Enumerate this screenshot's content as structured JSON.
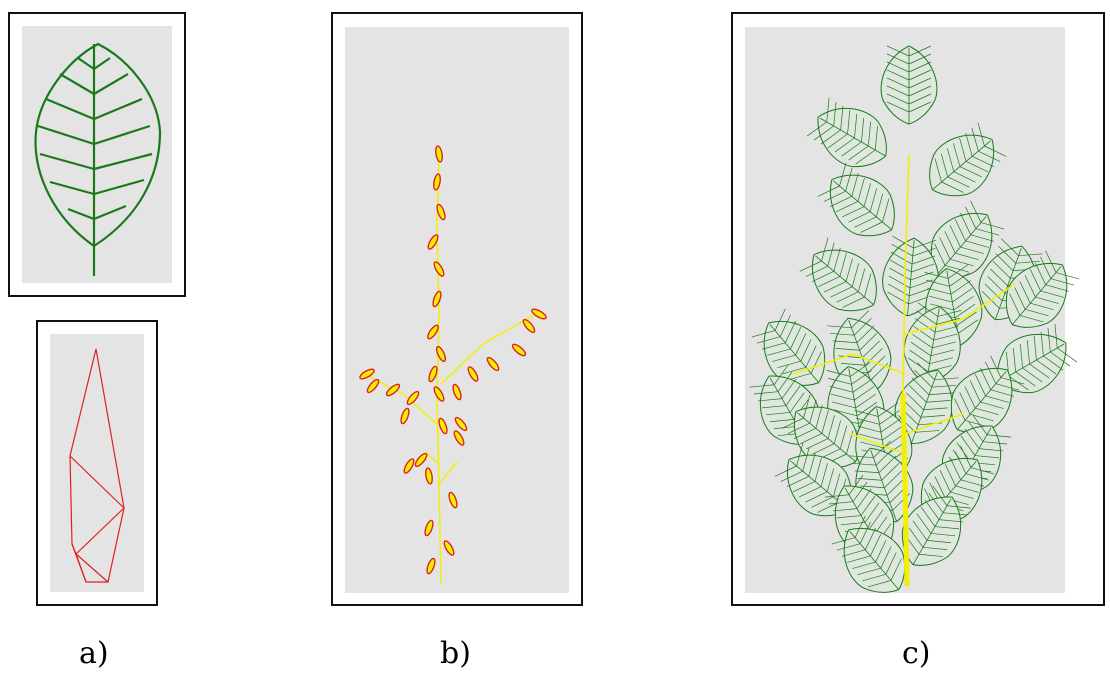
{
  "panels": [
    {
      "id": "a",
      "label": "a)"
    },
    {
      "id": "b",
      "label": "b)"
    },
    {
      "id": "c",
      "label": "c)"
    }
  ],
  "colors": {
    "frame_border": "#111111",
    "canvas_bg": "#e4e4e4",
    "leaf_green": "#1a7a1a",
    "leaf_fill": "#2f9a2f",
    "stem_yellow": "#f4ef00",
    "bud_red": "#e02020",
    "polygon_red": "#e02020"
  }
}
